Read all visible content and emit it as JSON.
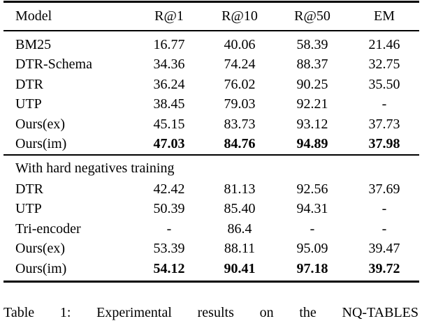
{
  "table": {
    "columns": [
      "Model",
      "R@1",
      "R@10",
      "R@50",
      "EM"
    ],
    "sections": [
      {
        "header": null,
        "rows": [
          {
            "model": "BM25",
            "values": [
              "16.77",
              "40.06",
              "58.39",
              "21.46"
            ],
            "bold": false
          },
          {
            "model": "DTR-Schema",
            "values": [
              "34.36",
              "74.24",
              "88.37",
              "32.75"
            ],
            "bold": false
          },
          {
            "model": "DTR",
            "values": [
              "36.24",
              "76.02",
              "90.25",
              "35.50"
            ],
            "bold": false
          },
          {
            "model": "UTP",
            "values": [
              "38.45",
              "79.03",
              "92.21",
              "-"
            ],
            "bold": false
          },
          {
            "model": "Ours(ex)",
            "values": [
              "45.15",
              "83.73",
              "93.12",
              "37.73"
            ],
            "bold": false
          },
          {
            "model": "Ours(im)",
            "values": [
              "47.03",
              "84.76",
              "94.89",
              "37.98"
            ],
            "bold": true
          }
        ]
      },
      {
        "header": "With hard negatives training",
        "rows": [
          {
            "model": "DTR",
            "values": [
              "42.42",
              "81.13",
              "92.56",
              "37.69"
            ],
            "bold": false
          },
          {
            "model": "UTP",
            "values": [
              "50.39",
              "85.40",
              "94.31",
              "-"
            ],
            "bold": false
          },
          {
            "model": "Tri-encoder",
            "values": [
              "-",
              "86.4",
              "-",
              "-"
            ],
            "bold": false
          },
          {
            "model": "Ours(ex)",
            "values": [
              "53.39",
              "88.11",
              "95.09",
              "39.47"
            ],
            "bold": false
          },
          {
            "model": "Ours(im)",
            "values": [
              "54.12",
              "90.41",
              "97.18",
              "39.72"
            ],
            "bold": true
          }
        ]
      }
    ]
  },
  "caption": "Table 1: Experimental results on the NQ-TABLES",
  "colors": {
    "text": "#000000",
    "background": "#ffffff",
    "rule": "#000000"
  }
}
